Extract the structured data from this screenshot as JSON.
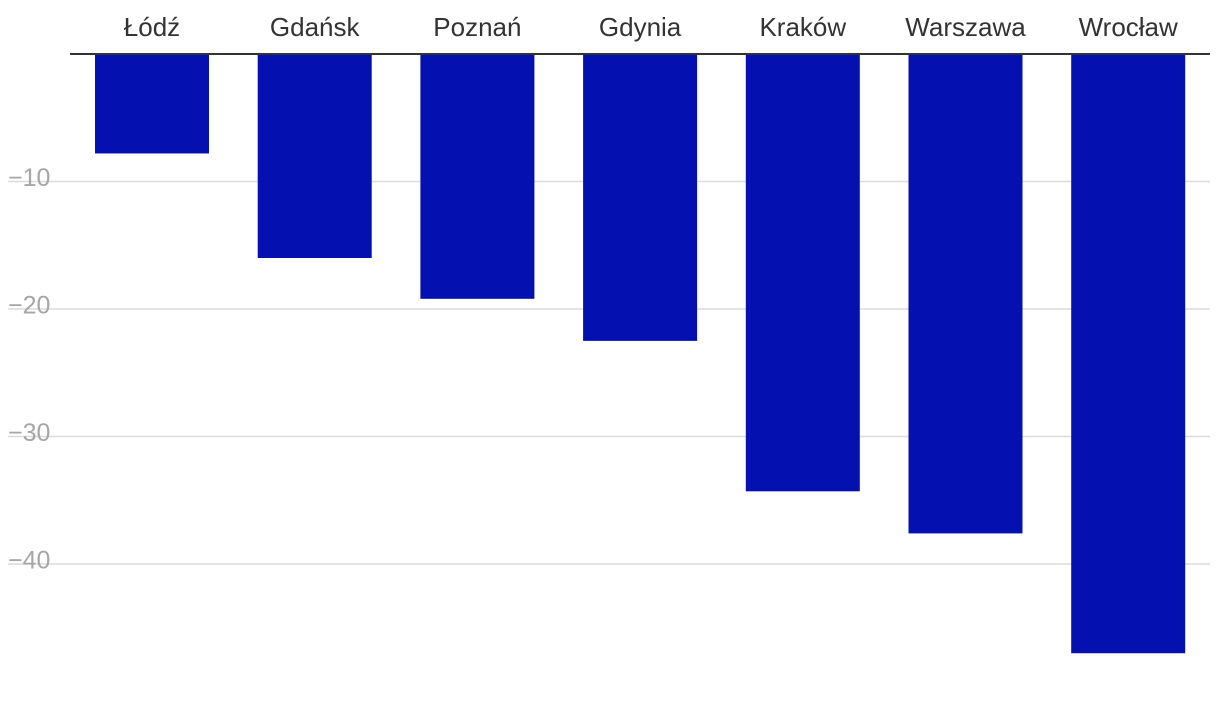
{
  "chart_data": {
    "type": "bar",
    "orientation": "vertical",
    "categories": [
      "Łódź",
      "Gdańsk",
      "Poznań",
      "Gdynia",
      "Kraków",
      "Warszawa",
      "Wrocław"
    ],
    "values": [
      -7.8,
      -16.0,
      -19.2,
      -22.5,
      -34.3,
      -37.6,
      -47.0
    ],
    "series": [
      {
        "values": [
          -7.8,
          -16.0,
          -19.2,
          -22.5,
          -34.3,
          -37.6,
          -47.0
        ]
      }
    ],
    "title": "",
    "xlabel": "",
    "ylabel": "",
    "ylim": [
      -48,
      0
    ],
    "yticks": [
      -10,
      -20,
      -30,
      -40
    ],
    "ytick_labels": [
      "−10",
      "−20",
      "−30",
      "−40"
    ],
    "grid": true,
    "category_labels_position": "top",
    "colors": {
      "bar": "#0410B0",
      "grid": "#dcdcdc",
      "tick_text": "#a6a6a6",
      "category_text": "#333333",
      "baseline": "#333333"
    }
  }
}
